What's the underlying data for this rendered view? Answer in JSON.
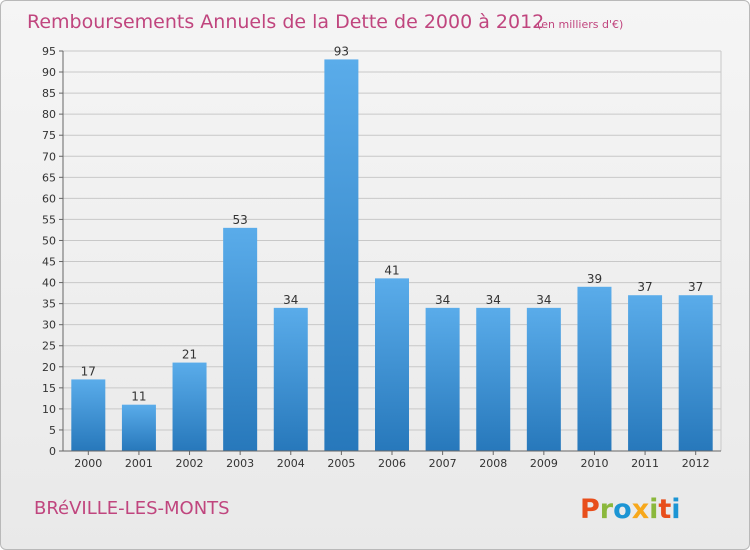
{
  "header": {
    "title": "Remboursements Annuels de la Dette de 2000 à 2012",
    "unit": "(en milliers d'€)"
  },
  "footer": {
    "commune": "BRéVILLE-LES-MONTS",
    "brand": "Proxiti"
  },
  "colors": {
    "title": "#c0457e",
    "bar_top": "#5aacea",
    "bar_bottom": "#2778bb",
    "grid": "#c8c8c8",
    "logo_letters": [
      "#e84e1b",
      "#8bb83c",
      "#1c95d4",
      "#f7a81b",
      "#8bb83c",
      "#e84e1b",
      "#1c95d4"
    ]
  },
  "chart_data": {
    "type": "bar",
    "categories": [
      "2000",
      "2001",
      "2002",
      "2003",
      "2004",
      "2005",
      "2006",
      "2007",
      "2008",
      "2009",
      "2010",
      "2011",
      "2012"
    ],
    "values": [
      17,
      11,
      21,
      53,
      34,
      93,
      41,
      34,
      34,
      34,
      39,
      37,
      37
    ],
    "ylim": [
      0,
      95
    ],
    "ytick_step": 5,
    "grid": true
  }
}
